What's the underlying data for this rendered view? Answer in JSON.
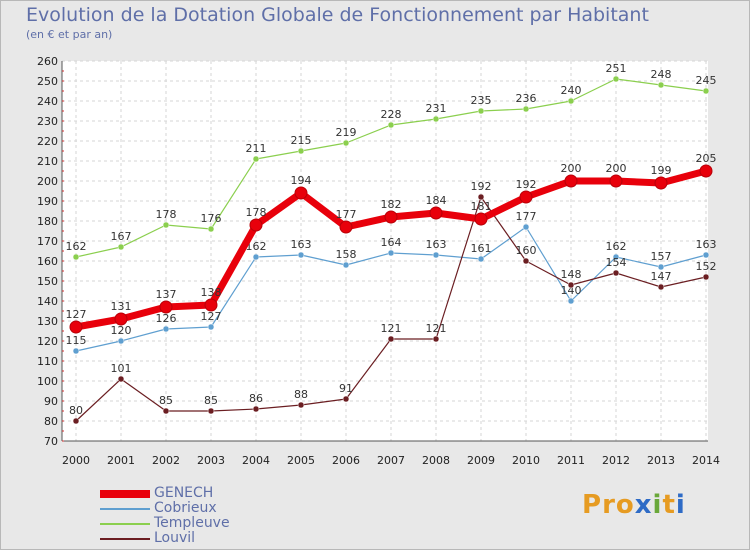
{
  "header": {
    "title": "Evolution de la Dotation Globale de Fonctionnement par Habitant",
    "subtitle": "(en € et par an)"
  },
  "logo": {
    "text": "Proxiti",
    "letters": [
      "P",
      "r",
      "o",
      "x",
      "i",
      "t",
      "i"
    ],
    "colors": [
      "#e69b22",
      "#e69b22",
      "#e69b22",
      "#2e6bc6",
      "#6aa83a",
      "#e69b22",
      "#2e6bc6"
    ]
  },
  "chart_data": {
    "type": "line",
    "title": "Evolution de la Dotation Globale de Fonctionnement par Habitant",
    "subtitle": "(en € et par an)",
    "xlabel": "",
    "ylabel": "",
    "ylim": [
      70,
      260
    ],
    "ytick_step": 10,
    "categories": [
      "2000",
      "2001",
      "2002",
      "2003",
      "2004",
      "2005",
      "2006",
      "2007",
      "2008",
      "2009",
      "2010",
      "2011",
      "2012",
      "2013",
      "2014"
    ],
    "grid": true,
    "legend_position": "bottom-left",
    "series": [
      {
        "name": "Templeuve",
        "color": "#8bcf4e",
        "values": [
          162,
          167,
          178,
          176,
          211,
          215,
          219,
          228,
          231,
          235,
          236,
          240,
          251,
          248,
          245
        ]
      },
      {
        "name": "Cobrieux",
        "color": "#5f9fd0",
        "values": [
          115,
          120,
          126,
          127,
          162,
          163,
          158,
          164,
          163,
          161,
          177,
          140,
          162,
          157,
          163
        ]
      },
      {
        "name": "Louvil",
        "color": "#6b1e22",
        "values": [
          80,
          101,
          85,
          85,
          86,
          88,
          91,
          121,
          121,
          192,
          160,
          148,
          154,
          147,
          152
        ]
      },
      {
        "name": "GENECH",
        "color": "#e8000b",
        "values": [
          127,
          131,
          137,
          138,
          178,
          194,
          177,
          182,
          184,
          181,
          192,
          200,
          200,
          199,
          205
        ]
      }
    ],
    "legend_order": [
      "GENECH",
      "Cobrieux",
      "Templeuve",
      "Louvil"
    ]
  }
}
